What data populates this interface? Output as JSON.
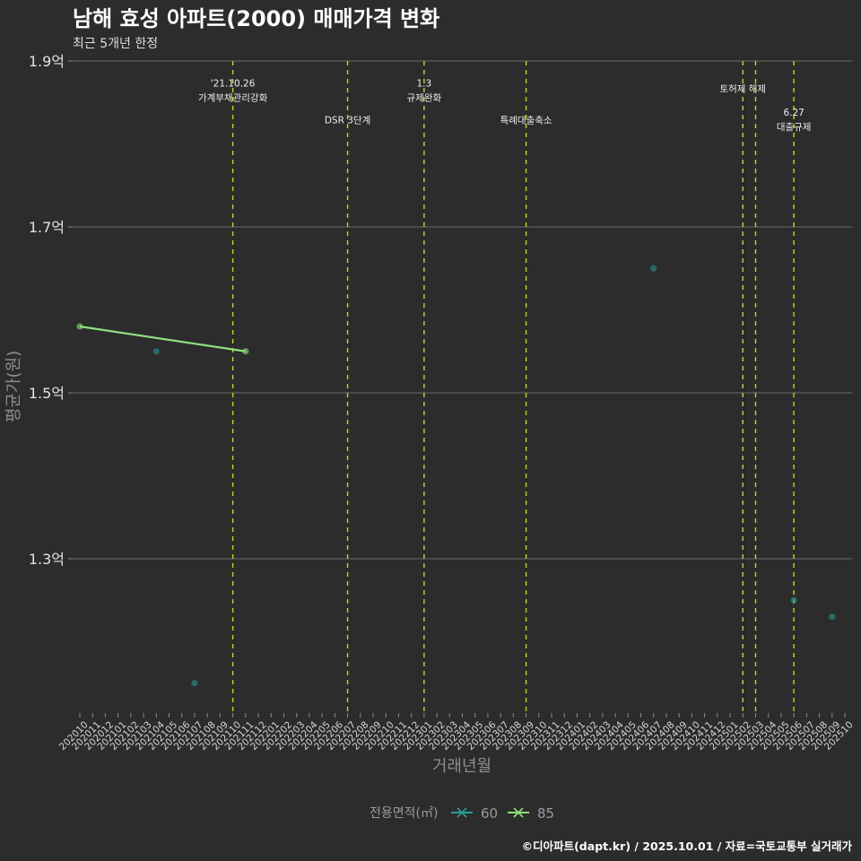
{
  "header": {
    "title": "남해 효성 아파트(2000) 매매가격 변화",
    "subtitle": "최근 5개년 한정"
  },
  "footer": {
    "caption": "©디아파트(dapt.kr) / 2025.10.01 / 자료=국토교통부 실거래가"
  },
  "chart_data": {
    "type": "line",
    "title": "남해 효성 아파트(2000) 매매가격 변화",
    "subtitle": "최근 5개년 한정",
    "xlabel": "거래년월",
    "ylabel": "평균가(원)",
    "categories": [
      "202010",
      "202011",
      "202012",
      "202101",
      "202102",
      "202103",
      "202104",
      "202105",
      "202106",
      "202107",
      "202108",
      "202109",
      "202110",
      "202111",
      "202112",
      "202201",
      "202202",
      "202203",
      "202204",
      "202205",
      "202206",
      "202207",
      "202208",
      "202209",
      "202210",
      "202211",
      "202212",
      "202301",
      "202302",
      "202303",
      "202304",
      "202305",
      "202306",
      "202307",
      "202308",
      "202309",
      "202310",
      "202311",
      "202312",
      "202401",
      "202402",
      "202403",
      "202404",
      "202405",
      "202406",
      "202407",
      "202408",
      "202409",
      "202410",
      "202411",
      "202412",
      "202501",
      "202502",
      "202503",
      "202504",
      "202505",
      "202506",
      "202507",
      "202508",
      "202509",
      "202510"
    ],
    "y_unit": "억",
    "y_ticks": [
      {
        "value": 1.3,
        "label": "1.3억"
      },
      {
        "value": 1.5,
        "label": "1.5억"
      },
      {
        "value": 1.7,
        "label": "1.7억"
      },
      {
        "value": 1.9,
        "label": "1.9억"
      }
    ],
    "ylim": [
      1.114,
      1.9
    ],
    "grid": {
      "major_y": true,
      "major_x": false
    },
    "series": [
      {
        "name": "60",
        "color": "#2A9D9A",
        "mode": "points",
        "points": [
          {
            "x": "202104",
            "y": 1.55
          },
          {
            "x": "202107",
            "y": 1.15
          },
          {
            "x": "202407",
            "y": 1.65
          },
          {
            "x": "202506",
            "y": 1.25
          },
          {
            "x": "202509",
            "y": 1.23
          }
        ]
      },
      {
        "name": "85",
        "color": "#8EE07E",
        "mode": "line+points",
        "points": [
          {
            "x": "202010",
            "y": 1.58
          },
          {
            "x": "202111",
            "y": 1.55
          }
        ]
      }
    ],
    "annotations": [
      {
        "x": "202110",
        "label": [
          "'21.10.26",
          "가계부채관리강화"
        ],
        "label_y": 1.865
      },
      {
        "x": "202207",
        "label": [
          "DSR 3단계"
        ],
        "label_y": 1.829
      },
      {
        "x": "202301",
        "label": [
          "1.3",
          "규제완화"
        ],
        "label_y": 1.865
      },
      {
        "x": "202309",
        "label": [
          "특례대출축소"
        ],
        "label_y": 1.829
      },
      {
        "x": "202502",
        "label": [
          "토허제 해제"
        ],
        "label_y": 1.867
      },
      {
        "x": "202503",
        "label": [],
        "label_y": 1.867
      },
      {
        "x": "202506",
        "label": [
          "6.27",
          "대출규제"
        ],
        "label_y": 1.83
      }
    ],
    "annotation_line_color": "#C8D42A",
    "legend": {
      "title": "전용면적(㎡)",
      "position": "bottom",
      "entries": [
        "60",
        "85"
      ]
    }
  },
  "theme": {
    "background": "#2c2c2c",
    "gridline": "#5e5e5e",
    "tick": "#8a8a8a"
  }
}
